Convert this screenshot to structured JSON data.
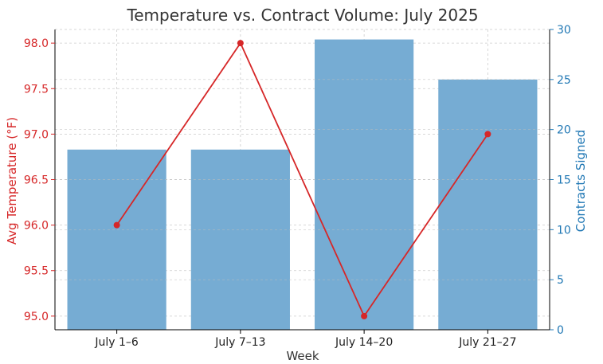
{
  "chart_data": {
    "type": "bar+line",
    "title": "Temperature vs. Contract Volume: July 2025",
    "xlabel": "Week",
    "categories": [
      "July 1–6",
      "July 7–13",
      "July 14–20",
      "July 21–27"
    ],
    "left_axis": {
      "label": "Avg Temperature (°F)",
      "color": "#d62728",
      "ylim": [
        94.85,
        98.15
      ],
      "ticks": [
        "95.0",
        "95.5",
        "96.0",
        "96.5",
        "97.0",
        "97.5",
        "98.0"
      ]
    },
    "right_axis": {
      "label": "Contracts Signed",
      "color": "#1f77b4",
      "ylim": [
        0,
        30
      ],
      "ticks": [
        "0",
        "5",
        "10",
        "15",
        "20",
        "25",
        "30"
      ]
    },
    "series": [
      {
        "name": "Contracts Signed",
        "kind": "bar",
        "axis": "right",
        "values": [
          18,
          18,
          29,
          25
        ],
        "color": "#76acd3"
      },
      {
        "name": "Avg Temperature",
        "kind": "line",
        "axis": "left",
        "values": [
          96.0,
          98.0,
          95.0,
          97.0
        ],
        "color": "#d62728"
      }
    ],
    "grid": true
  }
}
